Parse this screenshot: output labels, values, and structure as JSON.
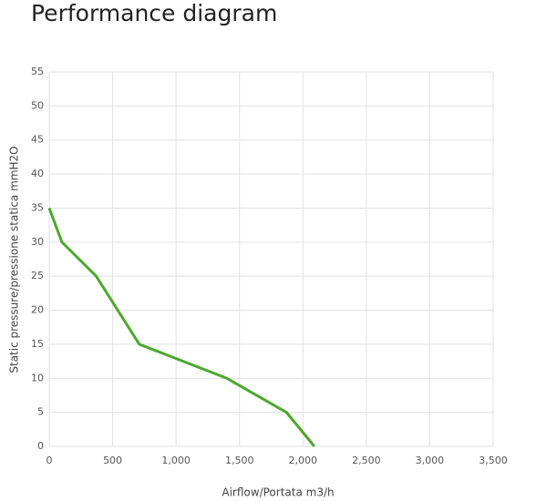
{
  "chart_data": {
    "type": "line",
    "title": "Performance diagram",
    "x_label": "Airflow/Portata m3/h",
    "y_label": "Static pressure/pressione statica mmH2O",
    "x": [
      0,
      100,
      370,
      710,
      1400,
      1870,
      2090
    ],
    "values": [
      35,
      30,
      25,
      15,
      10,
      5,
      0
    ],
    "color": "#4ea72e",
    "xlim": [
      0,
      3500
    ],
    "xticks": [
      0,
      500,
      {
        "value": 1000,
        "label": "1,000"
      },
      {
        "value": 1500,
        "label": "1,500"
      },
      {
        "value": 2000,
        "label": "2,000"
      },
      {
        "value": 2500,
        "label": "2,500"
      },
      {
        "value": 3000,
        "label": "3,000"
      },
      {
        "value": 3500,
        "label": "3,500"
      }
    ],
    "ylim": [
      0,
      55
    ],
    "yticks": [
      0,
      5,
      10,
      15,
      20,
      25,
      30,
      35,
      40,
      45,
      50,
      55
    ],
    "grid": true
  }
}
